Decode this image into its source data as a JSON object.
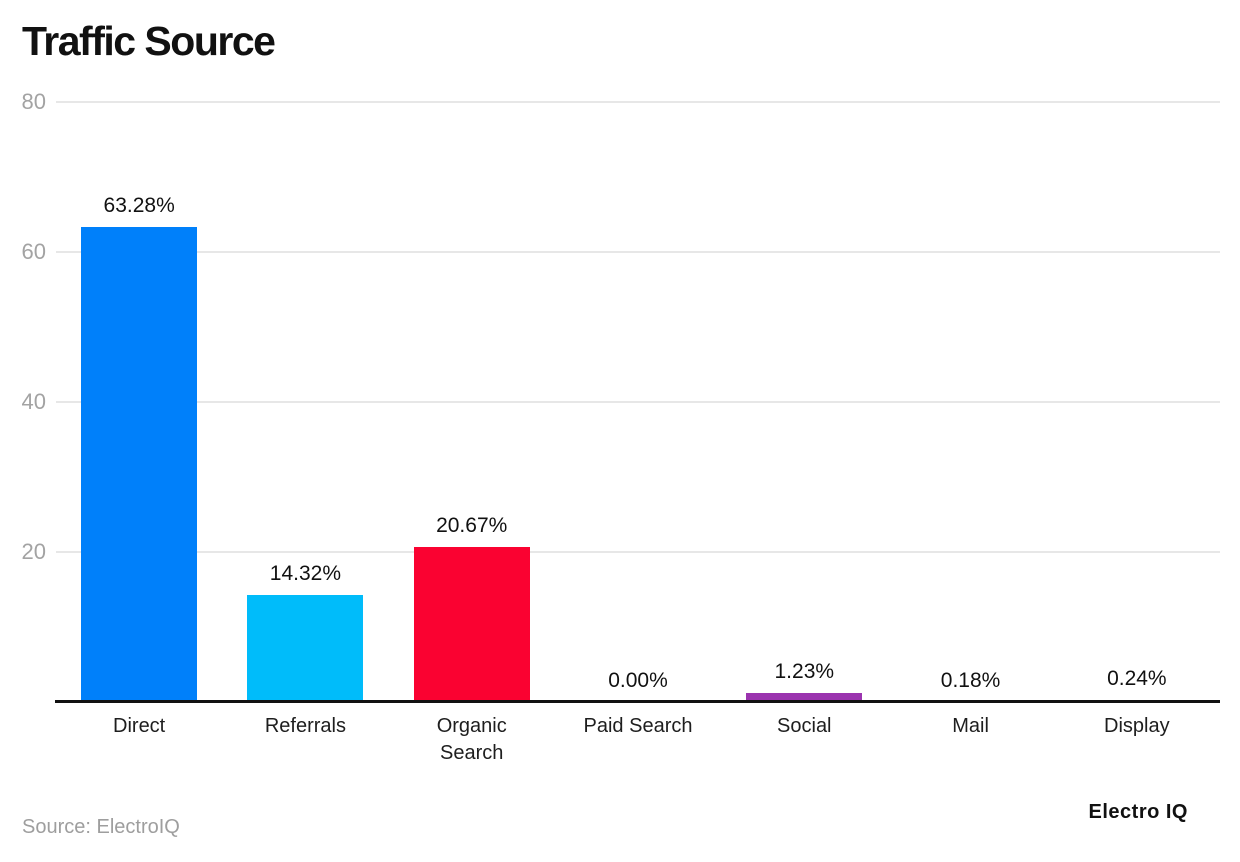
{
  "title": "Traffic Source",
  "footer": {
    "source_note": "Source: ElectroIQ",
    "brand": "Electro IQ"
  },
  "colors": {
    "grid": "#e7e7e7",
    "axis": "#111111",
    "y_tick_label": "#a3a3a3",
    "category_label": "#1e1e1e",
    "value_label": "#111111",
    "source_note": "#9e9e9e",
    "brand": "#111111"
  },
  "chart_data": {
    "type": "bar",
    "title": "Traffic Source",
    "categories": [
      "Direct",
      "Referrals",
      "Organic Search",
      "Paid Search",
      "Social",
      "Mail",
      "Display"
    ],
    "values": [
      63.28,
      14.32,
      20.67,
      0.0,
      1.23,
      0.18,
      0.24
    ],
    "value_labels": [
      "63.28%",
      "14.32%",
      "20.67%",
      "0.00%",
      "1.23%",
      "0.18%",
      "0.24%"
    ],
    "bar_colors": [
      "#0080fa",
      "#00bcfa",
      "#fa0231",
      null,
      "#9b34af",
      null,
      "#1b6fd0"
    ],
    "xlabel": "",
    "ylabel": "",
    "ylim": [
      0,
      80
    ],
    "yticks": [
      20,
      40,
      60,
      80
    ],
    "grid": true,
    "legend": false
  }
}
